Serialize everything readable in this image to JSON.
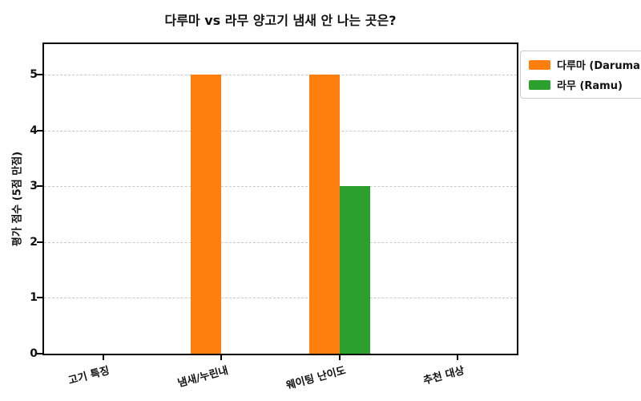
{
  "figure": {
    "background": "#ffffff"
  },
  "chart_data": {
    "type": "bar",
    "title": "다루마 vs 라무 양고기 냄새 안 나는 곳은?",
    "ylabel": "평가 점수 (5점 만점)",
    "xlabel": "",
    "categories": [
      "고기 특징",
      "냄새/누린내",
      "웨이팅 난이도",
      "추천 대상"
    ],
    "series": [
      {
        "name": "다루마 (Daruma)",
        "color": "#ff7f0e",
        "values": [
          0,
          5,
          5,
          0
        ]
      },
      {
        "name": "라무 (Ramu)",
        "color": "#2ca02c",
        "values": [
          0,
          0,
          3,
          0
        ]
      }
    ],
    "yticks": [
      0,
      1,
      2,
      3,
      4,
      5
    ],
    "ylim": [
      0,
      5.55
    ],
    "grid": "horizontal-dashed",
    "grid_color": "#c9c9c9",
    "legend_position": "outside-top-right",
    "x_tick_rotation_deg": 15
  }
}
